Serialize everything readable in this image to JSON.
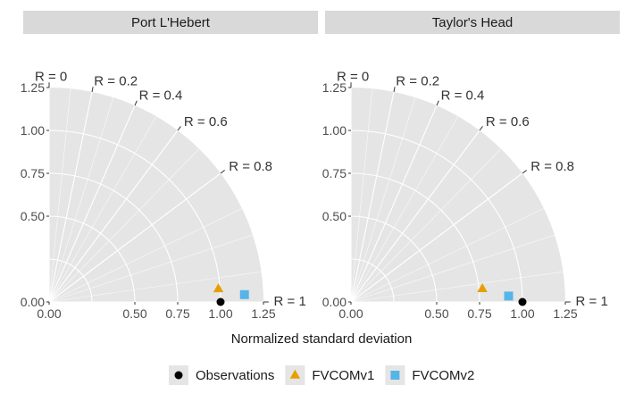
{
  "chart_data": {
    "type": "scatter",
    "subtype": "taylor-diagram",
    "xlabel": "Normalized standard deviation",
    "sd_range": [
      0,
      1.25
    ],
    "sd_ticks": [
      0,
      0.5,
      0.75,
      1.0,
      1.25
    ],
    "sd_tick_labels": [
      "0.00",
      "0.50",
      "0.75",
      "1.00",
      "1.25"
    ],
    "y_ticks": [
      0,
      0.5,
      0.75,
      1.0,
      1.25
    ],
    "y_tick_labels": [
      "0.00",
      "0.50",
      "0.75",
      "1.00",
      "1.25"
    ],
    "correlation_ticks": [
      0,
      0.2,
      0.4,
      0.6,
      0.8,
      1
    ],
    "correlation_labels": [
      "R = 0",
      "R = 0.2",
      "R = 0.4",
      "R = 0.6",
      "R = 0.8",
      "R = 1"
    ],
    "legend_position": "bottom",
    "series": [
      {
        "name": "Observations",
        "color": "#000000",
        "shape": "circle"
      },
      {
        "name": "FVCOMv1",
        "color": "#E69F00",
        "shape": "triangle"
      },
      {
        "name": "FVCOMv2",
        "color": "#56B4E9",
        "shape": "square"
      }
    ],
    "panels": [
      {
        "title": "Port L'Hebert",
        "points": [
          {
            "series": "Observations",
            "sd": 1.0,
            "r": 1.0
          },
          {
            "series": "FVCOMv1",
            "sd": 0.99,
            "r": 0.997
          },
          {
            "series": "FVCOMv2",
            "sd": 1.14,
            "r": 0.9993
          }
        ]
      },
      {
        "title": "Taylor's Head",
        "points": [
          {
            "series": "Observations",
            "sd": 1.0,
            "r": 1.0
          },
          {
            "series": "FVCOMv1",
            "sd": 0.77,
            "r": 0.995
          },
          {
            "series": "FVCOMv2",
            "sd": 0.92,
            "r": 0.9993
          }
        ]
      }
    ]
  },
  "colors": {
    "panel_background": "#e5e5e5",
    "strip_background": "#d9d9d9",
    "grid": "#ffffff"
  }
}
